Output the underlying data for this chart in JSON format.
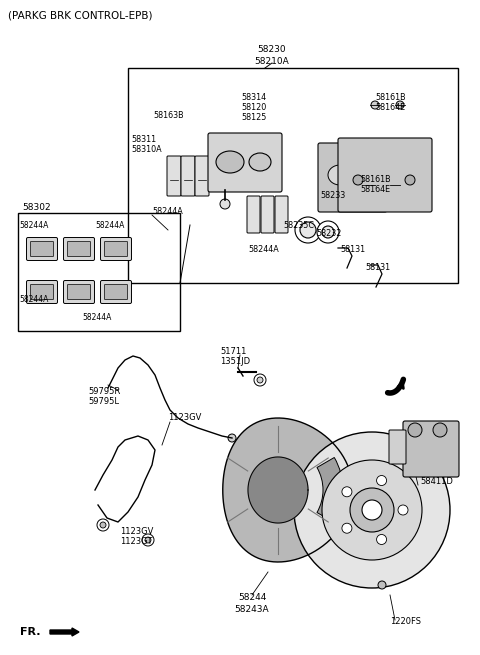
{
  "title": "(PARKG BRK CONTROL-EPB)",
  "bg_color": "#ffffff",
  "text_color": "#000000",
  "line_color": "#000000",
  "fig_width": 4.8,
  "fig_height": 6.55,
  "dpi": 100,
  "labels": {
    "top_center": [
      "58230",
      "58210A"
    ],
    "box_upper_left_1": [
      "58311",
      "58310A"
    ],
    "box_upper_left_2": "58163B",
    "box_upper_center": [
      "58314",
      "58120",
      "58125"
    ],
    "box_upper_right_1": [
      "58161B",
      "58164E"
    ],
    "box_upper_right_2": [
      "58161B",
      "58164E"
    ],
    "box_center_left": "58244A",
    "box_center_right_1": "58233",
    "box_center_right_2": "58235C",
    "box_center_right_3": "58232",
    "box_lower_3": "58131",
    "box_lower_4": "58131",
    "left_box_label": "58302",
    "left_box_items": [
      "58244A",
      "58244A",
      "58244A",
      "58244A"
    ],
    "lower_left_1": [
      "59795R",
      "59795L"
    ],
    "lower_left_2": "1123GV",
    "lower_left_3": [
      "1123GV",
      "1123GT"
    ],
    "lower_center_1": [
      "51711",
      "1351JD"
    ],
    "lower_center_2": [
      "58244",
      "58243A"
    ],
    "lower_right_1": "58411D",
    "lower_right_2": "1220FS",
    "fr_label": "FR."
  }
}
